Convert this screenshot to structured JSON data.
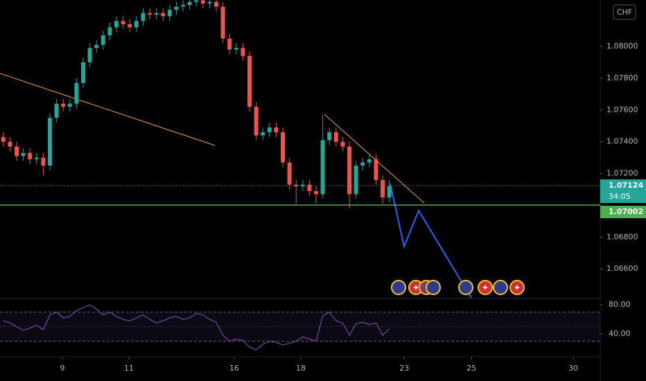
{
  "chart_data": {
    "type": "candlestick",
    "currency": "CHF",
    "x": [
      0.1,
      0.3,
      0.5,
      0.7,
      0.9,
      1.1,
      1.3,
      1.5,
      1.7,
      1.9,
      2.1,
      2.3,
      2.5,
      2.7,
      2.9,
      3.1,
      3.3,
      3.5,
      3.7,
      3.9,
      4.1,
      4.3,
      4.5,
      4.7,
      4.9,
      5.1,
      5.3,
      5.5,
      5.7,
      5.9,
      6.1,
      6.3,
      6.5,
      6.7,
      6.9,
      7.1,
      7.3,
      7.5,
      7.7,
      7.9,
      8.1,
      8.3,
      8.5,
      8.7,
      8.9,
      9.1,
      9.3,
      9.5,
      9.7,
      9.9,
      10.1,
      10.3,
      10.5,
      10.7,
      10.9,
      11.1,
      11.3,
      11.5,
      11.7
    ],
    "open": [
      1.0743,
      1.074,
      1.0737,
      1.0731,
      1.0733,
      1.0729,
      1.073,
      1.0725,
      1.0755,
      1.0764,
      1.0762,
      1.0764,
      1.0777,
      1.079,
      1.0799,
      1.0801,
      1.0807,
      1.0812,
      1.0816,
      1.0814,
      1.0812,
      1.0816,
      1.0821,
      1.082,
      1.0821,
      1.0819,
      1.0823,
      1.0825,
      1.0826,
      1.0828,
      1.0829,
      1.0827,
      1.0828,
      1.0825,
      1.0805,
      1.0798,
      1.0799,
      1.0794,
      1.0762,
      1.0744,
      1.0746,
      1.0749,
      1.0746,
      1.0727,
      1.0713,
      1.0712,
      1.0713,
      1.0709,
      1.0707,
      1.0741,
      1.0746,
      1.074,
      1.0737,
      1.0707,
      1.0725,
      1.0727,
      1.0729,
      1.0716,
      1.0705
    ],
    "high": [
      1.0746,
      1.0743,
      1.074,
      1.0736,
      1.0736,
      1.0733,
      1.0733,
      1.0758,
      1.0767,
      1.0767,
      1.0767,
      1.078,
      1.0793,
      1.0802,
      1.0804,
      1.081,
      1.0815,
      1.0819,
      1.0819,
      1.0817,
      1.0819,
      1.0824,
      1.0824,
      1.0824,
      1.0824,
      1.0826,
      1.0828,
      1.0829,
      1.0831,
      1.0832,
      1.0832,
      1.0831,
      1.0831,
      1.0828,
      1.0808,
      1.0802,
      1.0802,
      1.0797,
      1.0765,
      1.0749,
      1.0752,
      1.0752,
      1.0749,
      1.073,
      1.0716,
      1.0716,
      1.0716,
      1.0712,
      1.0757,
      1.0749,
      1.0749,
      1.0743,
      1.074,
      1.0728,
      1.073,
      1.0732,
      1.0732,
      1.0719,
      1.0716
    ],
    "low": [
      1.0737,
      1.0734,
      1.0728,
      1.0728,
      1.0726,
      1.0726,
      1.0719,
      1.0722,
      1.0752,
      1.0759,
      1.0759,
      1.0761,
      1.0774,
      1.0787,
      1.0796,
      1.0798,
      1.0804,
      1.0809,
      1.0811,
      1.0809,
      1.0809,
      1.0813,
      1.0817,
      1.0817,
      1.0816,
      1.0816,
      1.082,
      1.0822,
      1.0823,
      1.0825,
      1.0824,
      1.0824,
      1.0822,
      1.0802,
      1.0795,
      1.0795,
      1.0791,
      1.0759,
      1.0741,
      1.0741,
      1.0743,
      1.0743,
      1.0724,
      1.071,
      1.0701,
      1.0709,
      1.0706,
      1.0701,
      1.0704,
      1.0738,
      1.0737,
      1.0734,
      1.0698,
      1.0704,
      1.0722,
      1.0724,
      1.0713,
      1.0701,
      1.0702
    ],
    "close": [
      1.074,
      1.0737,
      1.0731,
      1.0733,
      1.0729,
      1.073,
      1.0725,
      1.0755,
      1.0764,
      1.0762,
      1.0764,
      1.0777,
      1.079,
      1.0799,
      1.0801,
      1.0807,
      1.0812,
      1.0816,
      1.0814,
      1.0812,
      1.0816,
      1.0821,
      1.082,
      1.0821,
      1.0819,
      1.0823,
      1.0825,
      1.0826,
      1.0828,
      1.0829,
      1.0827,
      1.0828,
      1.0825,
      1.0805,
      1.0798,
      1.0799,
      1.0794,
      1.0762,
      1.0744,
      1.0746,
      1.0749,
      1.0746,
      1.0727,
      1.0713,
      1.0712,
      1.0713,
      1.0709,
      1.0707,
      1.0741,
      1.0746,
      1.074,
      1.0737,
      1.0707,
      1.0725,
      1.0727,
      1.0729,
      1.0716,
      1.0705,
      1.0712
    ],
    "up_color": "#26a69a",
    "down_color": "#ef5350",
    "xlim": [
      0,
      18.04
    ],
    "xticks": [
      {
        "value": 1.875,
        "label": "9"
      },
      {
        "value": 3.875,
        "label": "11"
      },
      {
        "value": 7.04,
        "label": "16"
      },
      {
        "value": 9.04,
        "label": "18"
      },
      {
        "value": 12.15,
        "label": "23"
      },
      {
        "value": 14.17,
        "label": "25"
      },
      {
        "value": 17.23,
        "label": "30"
      }
    ],
    "ylim": [
      1.06418,
      1.08292
    ],
    "yticks": [
      {
        "value": 1.066,
        "label": "1.06600"
      },
      {
        "value": 1.068,
        "label": "1.06800"
      },
      {
        "value": 1.072,
        "label": "1.07200"
      },
      {
        "value": 1.074,
        "label": "1.07400"
      },
      {
        "value": 1.076,
        "label": "1.07600"
      },
      {
        "value": 1.078,
        "label": "1.07800"
      },
      {
        "value": 1.08,
        "label": "1.08000"
      }
    ],
    "last_price": {
      "value": 1.07124,
      "label": "1.07124",
      "countdown": "34:05",
      "color": "#26a69a"
    },
    "level": {
      "value": 1.07002,
      "label": "1.07002",
      "color": "#4caf50"
    },
    "rsi": {
      "type": "line",
      "color": "#7e57c2",
      "values": [
        58,
        55,
        50,
        45,
        48,
        52,
        46,
        66,
        70,
        62,
        64,
        72,
        76,
        80,
        74,
        66,
        70,
        64,
        60,
        58,
        62,
        66,
        60,
        55,
        58,
        62,
        64,
        60,
        62,
        68,
        66,
        60,
        56,
        38,
        30,
        33,
        31,
        22,
        18,
        26,
        30,
        28,
        25,
        27,
        30,
        36,
        33,
        30,
        65,
        70,
        58,
        55,
        38,
        54,
        56,
        53,
        55,
        38,
        47
      ],
      "ylim": [
        8.6,
        87.6
      ],
      "yticks": [
        {
          "value": 80,
          "label": "80.00"
        },
        {
          "value": 40,
          "label": "40.00"
        }
      ],
      "bands": [
        70,
        50,
        30
      ]
    }
  }
}
